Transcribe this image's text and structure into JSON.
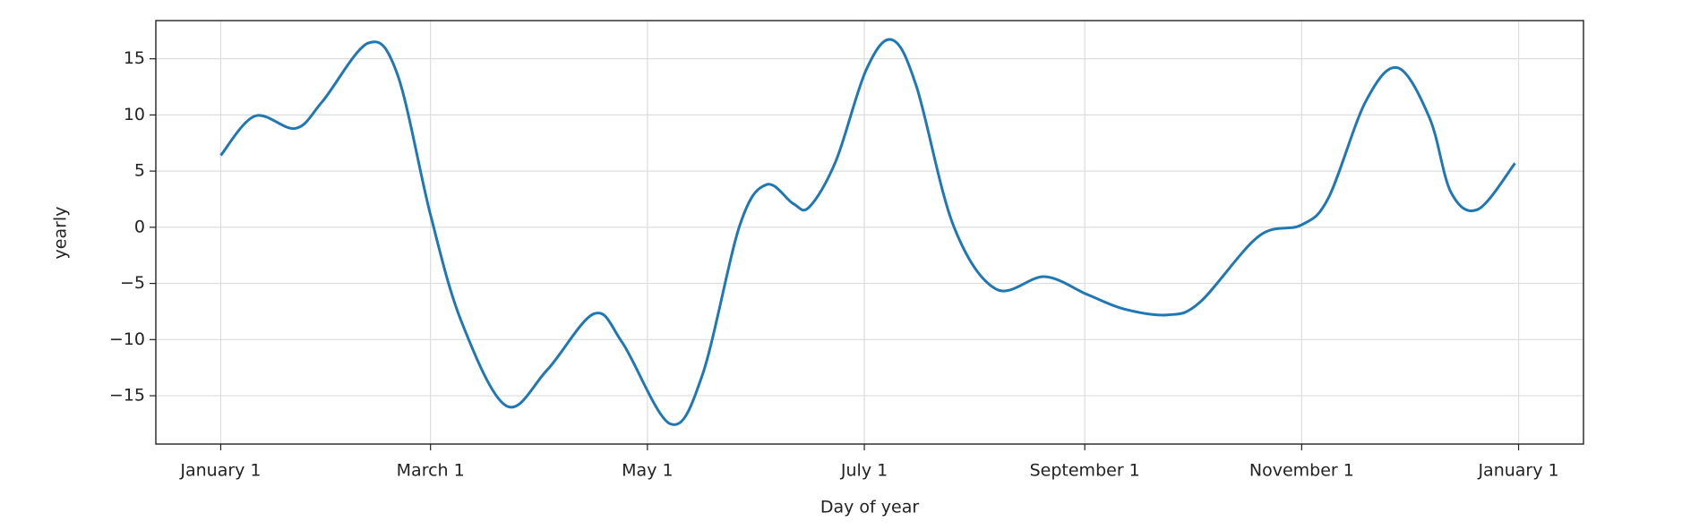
{
  "chart_data": {
    "type": "line",
    "xlabel": "Day of year",
    "ylabel": "yearly",
    "x": [
      0,
      9.6,
      21,
      28.6,
      41.5,
      49.7,
      59,
      67.7,
      80.3,
      91.8,
      105,
      113,
      126.4,
      135.4,
      146,
      153.5,
      161,
      165.5,
      173,
      181.5,
      188.7,
      195.6,
      206,
      218,
      231.7,
      243.8,
      254.3,
      266.3,
      275.3,
      291.9,
      303.9,
      311.5,
      322,
      331,
      340,
      346,
      353.6,
      364
    ],
    "series": [
      {
        "name": "yearly",
        "color": "#1f77b4",
        "values": [
          6.4,
          9.9,
          8.8,
          11.2,
          16.4,
          13.6,
          1.1,
          -8.4,
          -15.9,
          -12.7,
          -7.7,
          -10.3,
          -17.5,
          -13.2,
          0.2,
          3.8,
          2.1,
          1.8,
          5.9,
          14,
          16.7,
          12.6,
          0.2,
          -5.5,
          -4.4,
          -6,
          -7.3,
          -7.8,
          -6.7,
          -0.8,
          0.2,
          2.6,
          11.2,
          14.2,
          9.7,
          3.1,
          1.6,
          5.7
        ]
      }
    ],
    "xlim": [
      -18.25,
      383.25
    ],
    "ylim": [
      -19.3,
      18.4
    ],
    "xticks": [
      {
        "value": 0,
        "label": "January 1"
      },
      {
        "value": 59,
        "label": "March 1"
      },
      {
        "value": 120,
        "label": "May 1"
      },
      {
        "value": 181,
        "label": "July 1"
      },
      {
        "value": 243,
        "label": "September 1"
      },
      {
        "value": 304,
        "label": "November 1"
      },
      {
        "value": 365,
        "label": "January 1"
      }
    ],
    "yticks": [
      {
        "value": -15,
        "label": "−15"
      },
      {
        "value": -10,
        "label": "−10"
      },
      {
        "value": -5,
        "label": "−5"
      },
      0,
      5,
      10,
      15
    ],
    "grid": true
  }
}
